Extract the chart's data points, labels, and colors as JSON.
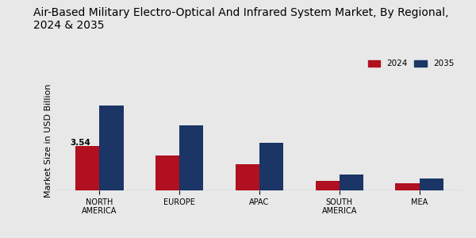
{
  "title": "Air-Based Military Electro-Optical And Infrared System Market, By Regional,\n2024 & 2035",
  "ylabel": "Market Size in USD Billion",
  "categories": [
    "NORTH\nAMERICA",
    "EUROPE",
    "APAC",
    "SOUTH\nAMERICA",
    "MEA"
  ],
  "values_2024": [
    3.54,
    2.8,
    2.1,
    0.75,
    0.55
  ],
  "values_2035": [
    6.8,
    5.2,
    3.8,
    1.25,
    0.95
  ],
  "color_2024": "#b01020",
  "color_2035": "#1a3566",
  "annotation_label": "3.54",
  "background_color": "#e8e8e8",
  "legend_labels": [
    "2024",
    "2035"
  ],
  "bar_width": 0.3,
  "title_fontsize": 10,
  "ylabel_fontsize": 8,
  "tick_fontsize": 7,
  "annot_fontsize": 7.5
}
